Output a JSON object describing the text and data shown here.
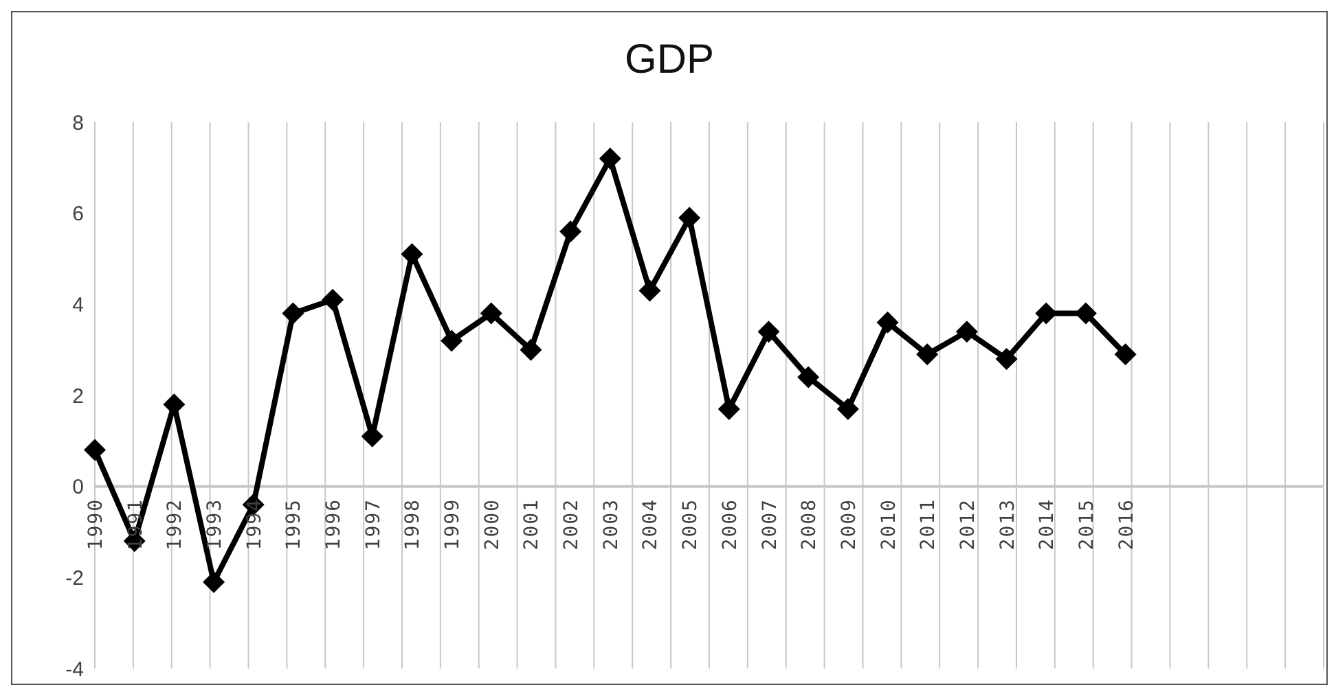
{
  "chart_data": {
    "type": "line",
    "title": "GDP",
    "categories": [
      "1990",
      "1991",
      "1992",
      "1993",
      "1994",
      "1995",
      "1996",
      "1997",
      "1998",
      "1999",
      "2000",
      "2001",
      "2002",
      "2003",
      "2004",
      "2005",
      "2006",
      "2007",
      "2008",
      "2009",
      "2010",
      "2011",
      "2012",
      "2013",
      "2014",
      "2015",
      "2016",
      null,
      null,
      null,
      null,
      null
    ],
    "series": [
      {
        "color": "#000000",
        "values": [
          0.8,
          -1.2,
          1.8,
          -2.1,
          -0.4,
          3.8,
          4.1,
          1.1,
          5.1,
          3.2,
          3.8,
          3.0,
          5.6,
          7.2,
          4.3,
          5.9,
          1.7,
          3.4,
          2.4,
          1.7,
          3.6,
          2.9,
          3.4,
          2.8,
          3.8,
          3.8,
          2.9,
          null,
          null,
          null,
          null,
          null
        ]
      }
    ],
    "ylim": [
      -4,
      8
    ],
    "yticks": [
      -4,
      -2,
      0,
      2,
      4,
      6,
      8
    ],
    "grid": "x",
    "marker": "diamond",
    "line_style": "solid"
  }
}
